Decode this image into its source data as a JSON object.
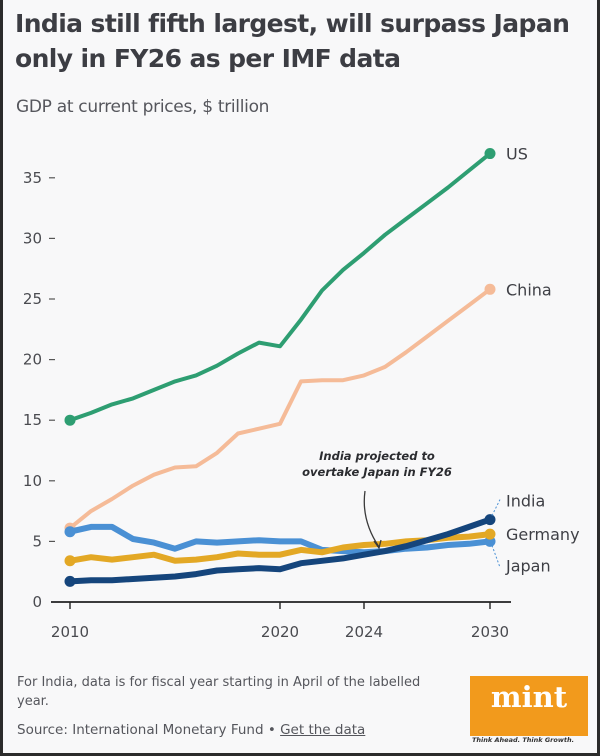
{
  "header": {
    "title": "India still fifth largest, will surpass Japan only in FY26 as per IMF data",
    "subtitle": "GDP at current prices, $ trillion"
  },
  "footer": {
    "note": "For India, data is for fiscal year starting in April of the labelled year.",
    "source_prefix": "Source: International Monetary Fund • ",
    "link": "Get the data",
    "brand": "mint",
    "tagline": "Think Ahead. Think Growth."
  },
  "chart_data": {
    "type": "line",
    "title": "India still fifth largest, will surpass Japan only in FY26 as per IMF data",
    "subtitle": "GDP at current prices, $ trillion",
    "xlabel": "",
    "ylabel": "GDP at current prices, $ trillion",
    "x": [
      2010,
      2011,
      2012,
      2013,
      2014,
      2015,
      2016,
      2017,
      2018,
      2019,
      2020,
      2021,
      2022,
      2023,
      2024,
      2025,
      2026,
      2027,
      2028,
      2029,
      2030
    ],
    "xticks": [
      2010,
      2020,
      2024,
      2030
    ],
    "xlim": [
      2010,
      2030
    ],
    "yticks": [
      0,
      5,
      10,
      15,
      20,
      25,
      30,
      35
    ],
    "ylim": [
      0,
      37
    ],
    "grid": false,
    "legend": "direct labels at line ends (right)",
    "series": [
      {
        "name": "US",
        "color": "#2e9e72",
        "values": [
          15.0,
          15.6,
          16.3,
          16.8,
          17.5,
          18.2,
          18.7,
          19.5,
          20.5,
          21.4,
          21.1,
          23.3,
          25.7,
          27.4,
          28.8,
          30.3,
          31.6,
          32.9,
          34.2,
          35.6,
          37.0
        ]
      },
      {
        "name": "China",
        "color": "#f5bb98",
        "values": [
          6.1,
          7.5,
          8.5,
          9.6,
          10.5,
          11.1,
          11.2,
          12.3,
          13.9,
          14.3,
          14.7,
          18.2,
          18.3,
          18.3,
          18.7,
          19.4,
          20.6,
          21.9,
          23.2,
          24.5,
          25.8
        ]
      },
      {
        "name": "India",
        "color": "#15457c",
        "values": [
          1.7,
          1.8,
          1.8,
          1.9,
          2.0,
          2.1,
          2.3,
          2.6,
          2.7,
          2.8,
          2.7,
          3.2,
          3.4,
          3.6,
          3.9,
          4.2,
          4.6,
          5.1,
          5.6,
          6.2,
          6.8
        ]
      },
      {
        "name": "Germany",
        "color": "#e3a825",
        "values": [
          3.4,
          3.7,
          3.5,
          3.7,
          3.9,
          3.4,
          3.5,
          3.7,
          4.0,
          3.9,
          3.9,
          4.3,
          4.1,
          4.5,
          4.7,
          4.8,
          5.0,
          5.1,
          5.3,
          5.4,
          5.6
        ]
      },
      {
        "name": "Japan",
        "color": "#4a90d4",
        "values": [
          5.8,
          6.2,
          6.2,
          5.2,
          4.9,
          4.4,
          5.0,
          4.9,
          5.0,
          5.1,
          5.0,
          5.0,
          4.3,
          4.2,
          4.1,
          4.2,
          4.4,
          4.5,
          4.7,
          4.8,
          5.0
        ]
      }
    ],
    "annotation": {
      "text_line1": "India projected to",
      "text_line2": "overtake Japan in FY26",
      "x": 2025
    }
  }
}
